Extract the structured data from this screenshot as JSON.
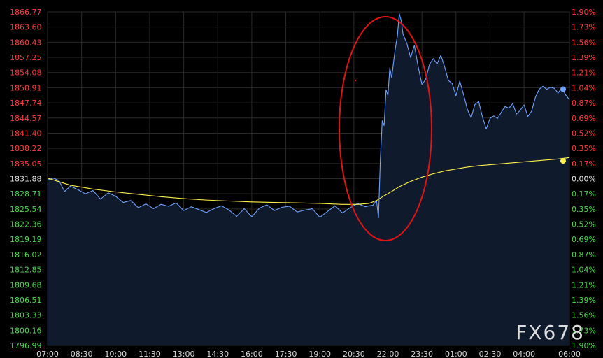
{
  "chart_data": {
    "type": "line",
    "watermark": "FX678",
    "base_price": 1831.88,
    "colors": {
      "background": "#000000",
      "grid": "#2a2a2a",
      "price_line": "#6fa2ff",
      "price_fill": "#0f1a2d",
      "average_line": "#fff04a",
      "above_base": "#ff3b3b",
      "below_base": "#4cd94c",
      "highlight_ellipse": "#e01414",
      "axis_text": "#d8d8d8",
      "baseline_label": "#e6e6e6"
    },
    "y_left_ticks": [
      "1866.77",
      "1863.60",
      "1860.43",
      "1857.25",
      "1854.08",
      "1850.91",
      "1847.74",
      "1844.57",
      "1841.40",
      "1838.22",
      "1835.05",
      "1831.88",
      "1828.71",
      "1825.54",
      "1822.36",
      "1819.19",
      "1816.02",
      "1812.85",
      "1809.68",
      "1806.51",
      "1803.33",
      "1800.16",
      "1796.99"
    ],
    "y_right_ticks": [
      "1.90%",
      "1.73%",
      "1.56%",
      "1.39%",
      "1.21%",
      "1.04%",
      "0.87%",
      "0.69%",
      "0.52%",
      "0.35%",
      "0.17%",
      "0.00%",
      "0.17%",
      "0.35%",
      "0.52%",
      "0.69%",
      "0.87%",
      "1.04%",
      "1.21%",
      "1.39%",
      "1.56%",
      "1.73%",
      "1.90%"
    ],
    "x_ticks": [
      "07:00",
      "08:30",
      "10:00",
      "11:30",
      "13:00",
      "14:30",
      "16:00",
      "17:30",
      "19:00",
      "20:30",
      "22:00",
      "23:30",
      "01:00",
      "02:30",
      "04:00",
      "06:00"
    ],
    "x_tick_minutes": [
      0,
      90,
      180,
      270,
      360,
      450,
      540,
      630,
      720,
      810,
      900,
      990,
      1080,
      1170,
      1260,
      1380
    ],
    "ylim": [
      1796.99,
      1866.77
    ],
    "xlim_minutes": [
      0,
      1380
    ],
    "grid": true,
    "series": [
      {
        "style": "area",
        "minutes": [
          0,
          15,
          30,
          45,
          60,
          80,
          100,
          120,
          140,
          160,
          180,
          200,
          220,
          240,
          260,
          280,
          300,
          320,
          340,
          360,
          380,
          400,
          420,
          440,
          460,
          480,
          500,
          520,
          540,
          560,
          580,
          600,
          620,
          640,
          660,
          680,
          700,
          720,
          740,
          760,
          780,
          800,
          820,
          840,
          850,
          860,
          870,
          875,
          880,
          885,
          890,
          895,
          900,
          905,
          910,
          915,
          920,
          925,
          930,
          935,
          940,
          950,
          960,
          970,
          980,
          990,
          1000,
          1010,
          1020,
          1030,
          1040,
          1050,
          1060,
          1070,
          1080,
          1090,
          1100,
          1110,
          1120,
          1130,
          1140,
          1150,
          1160,
          1170,
          1180,
          1190,
          1200,
          1210,
          1220,
          1230,
          1240,
          1250,
          1260,
          1270,
          1280,
          1290,
          1300,
          1310,
          1320,
          1330,
          1340,
          1350,
          1360,
          1370,
          1380
        ],
        "values": [
          1831.6,
          1832.0,
          1831.5,
          1829.2,
          1830.3,
          1829.6,
          1828.7,
          1829.4,
          1827.6,
          1828.9,
          1828.2,
          1826.9,
          1827.3,
          1825.8,
          1826.6,
          1825.6,
          1826.5,
          1826.1,
          1826.8,
          1825.2,
          1826.0,
          1825.4,
          1824.8,
          1825.6,
          1826.2,
          1825.3,
          1824.0,
          1825.6,
          1823.9,
          1825.7,
          1826.4,
          1825.2,
          1825.9,
          1826.1,
          1824.9,
          1825.3,
          1825.6,
          1823.8,
          1825.0,
          1826.2,
          1824.7,
          1825.8,
          1826.7,
          1826.0,
          1826.2,
          1826.3,
          1827.3,
          1823.7,
          1835.9,
          1844.0,
          1843.0,
          1850.5,
          1849.3,
          1855.1,
          1853.0,
          1856.3,
          1859.4,
          1861.7,
          1866.4,
          1865.0,
          1862.1,
          1860.2,
          1857.2,
          1859.8,
          1855.3,
          1851.6,
          1852.7,
          1855.8,
          1857.0,
          1855.9,
          1857.7,
          1855.3,
          1852.4,
          1851.8,
          1849.2,
          1852.3,
          1849.5,
          1846.4,
          1844.6,
          1847.4,
          1848.0,
          1844.8,
          1842.3,
          1844.5,
          1845.0,
          1844.5,
          1845.8,
          1847.0,
          1846.6,
          1847.6,
          1845.4,
          1846.2,
          1847.3,
          1844.9,
          1846.0,
          1848.9,
          1850.6,
          1851.2,
          1850.6,
          1851.0,
          1850.8,
          1849.8,
          1850.9,
          1849.4,
          1848.4
        ]
      },
      {
        "style": "line",
        "minutes": [
          0,
          60,
          120,
          180,
          240,
          300,
          360,
          420,
          480,
          540,
          600,
          660,
          720,
          780,
          820,
          850,
          870,
          890,
          910,
          930,
          960,
          990,
          1020,
          1050,
          1080,
          1110,
          1140,
          1170,
          1200,
          1230,
          1260,
          1290,
          1320,
          1350,
          1380
        ],
        "values": [
          1832.0,
          1830.5,
          1829.7,
          1829.1,
          1828.6,
          1828.1,
          1827.7,
          1827.4,
          1827.2,
          1827.0,
          1826.9,
          1826.8,
          1826.7,
          1826.5,
          1826.5,
          1826.7,
          1827.3,
          1828.3,
          1829.2,
          1830.2,
          1831.3,
          1832.2,
          1832.9,
          1833.5,
          1833.9,
          1834.3,
          1834.6,
          1834.8,
          1835.0,
          1835.2,
          1835.4,
          1835.6,
          1835.8,
          1836.0,
          1836.3
        ]
      }
    ],
    "end_marker_values": [
      1850.6,
      1835.6
    ]
  }
}
